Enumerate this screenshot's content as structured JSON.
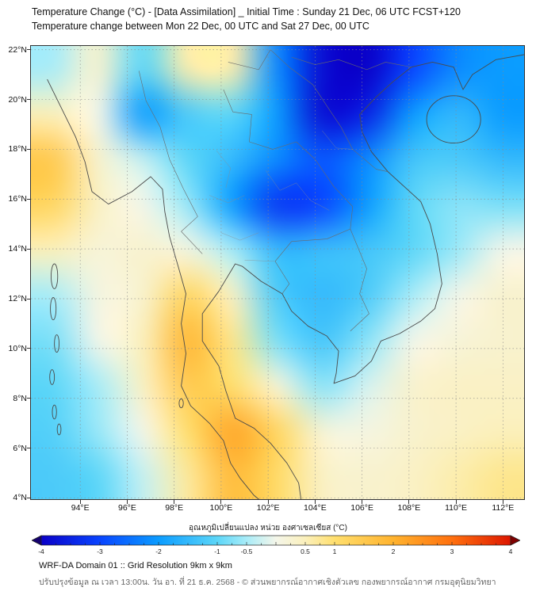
{
  "header": {
    "title_line1": "Temperature Change (°C) - [Data Assimilation] _ Initial Time : Sunday 21 Dec, 06 UTC FCST+120",
    "title_line2": "Temperature change between Mon 22 Dec, 00 UTC and Sat 27 Dec, 00 UTC"
  },
  "map_axes": {
    "extent": {
      "lon_min": 91.9,
      "lon_max": 112.9,
      "lat_min": 3.95,
      "lat_max": 22.15
    },
    "lat_ticks": [
      {
        "value": 22,
        "label": "22°N"
      },
      {
        "value": 20,
        "label": "20°N"
      },
      {
        "value": 18,
        "label": "18°N"
      },
      {
        "value": 16,
        "label": "16°N"
      },
      {
        "value": 14,
        "label": "14°N"
      },
      {
        "value": 12,
        "label": "12°N"
      },
      {
        "value": 10,
        "label": "10°N"
      },
      {
        "value": 8,
        "label": "8°N"
      },
      {
        "value": 6,
        "label": "6°N"
      },
      {
        "value": 4,
        "label": "4°N"
      }
    ],
    "lon_ticks": [
      {
        "value": 94,
        "label": "94°E"
      },
      {
        "value": 96,
        "label": "96°E"
      },
      {
        "value": 98,
        "label": "98°E"
      },
      {
        "value": 100,
        "label": "100°E"
      },
      {
        "value": 102,
        "label": "102°E"
      },
      {
        "value": 104,
        "label": "104°E"
      },
      {
        "value": 106,
        "label": "106°E"
      },
      {
        "value": 108,
        "label": "108°E"
      },
      {
        "value": 110,
        "label": "110°E"
      },
      {
        "value": 112,
        "label": "112°E"
      }
    ]
  },
  "colorbar": {
    "label": "อุณหภูมิเปลี่ยนแปลง หน่วย องศาเซลเซียส (°C)",
    "tick_values": [
      -4,
      -3,
      -2,
      -1,
      -0.5,
      0.5,
      1,
      2,
      3,
      4
    ],
    "range": [
      -4,
      4
    ],
    "stops": [
      {
        "v": -4.5,
        "c": "#14006e"
      },
      {
        "v": -4.0,
        "c": "#0a00c8"
      },
      {
        "v": -3.0,
        "c": "#0944ff"
      },
      {
        "v": -2.0,
        "c": "#0b9cff"
      },
      {
        "v": -1.0,
        "c": "#5cd6f8"
      },
      {
        "v": -0.5,
        "c": "#a8ecf8"
      },
      {
        "v": 0.0,
        "c": "#f4f6ea"
      },
      {
        "v": 0.5,
        "c": "#fbf0bc"
      },
      {
        "v": 1.0,
        "c": "#ffdf6e"
      },
      {
        "v": 2.0,
        "c": "#ffb32e"
      },
      {
        "v": 3.0,
        "c": "#ff700e"
      },
      {
        "v": 4.0,
        "c": "#dd1600"
      },
      {
        "v": 4.5,
        "c": "#7f0000"
      }
    ]
  },
  "footer": {
    "line1": "WRF-DA Domain 01 :: Grid Resolution 9km x 9km",
    "line2": "ปรับปรุงข้อมูล ณ เวลา 13:00น. วัน อา. ที่ 21 ธ.ค. 2568 - © ส่วนพยากรณ์อากาศเชิงตัวเลข กองพยากรณ์อากาศ กรมอุตุนิยมวิทยา"
  },
  "chart_data": {
    "type": "heatmap",
    "title": "Temperature change (°C) between Mon 22 Dec, 00 UTC and Sat 27 Dec, 00 UTC",
    "unit": "°C",
    "value_range": [
      -4,
      4
    ],
    "x_lon": [
      92.9,
      94.8,
      96.7,
      98.6,
      100.5,
      102.4,
      104.3,
      106.2,
      108.1,
      110.0,
      111.9
    ],
    "y_lat": [
      21.2,
      19.4,
      17.6,
      15.8,
      13.9,
      12.1,
      10.3,
      8.5,
      6.6,
      4.9
    ],
    "values": [
      [
        -0.5,
        0.3,
        -1.0,
        0.6,
        0.6,
        -2.2,
        -3.8,
        -4.0,
        -3.0,
        -2.2,
        -2.0
      ],
      [
        0.5,
        0.0,
        -2.0,
        -1.2,
        -1.0,
        -2.0,
        -3.8,
        -3.5,
        -2.0,
        -1.5,
        -2.0
      ],
      [
        1.5,
        0.3,
        -0.3,
        -1.0,
        -1.5,
        -2.2,
        -2.8,
        -2.2,
        -1.3,
        -1.2,
        -1.5
      ],
      [
        1.2,
        0.4,
        0.0,
        -0.6,
        -2.0,
        -3.2,
        -3.0,
        -2.0,
        -1.0,
        -0.7,
        -0.8
      ],
      [
        0.5,
        0.2,
        0.3,
        0.1,
        -0.5,
        -1.5,
        -1.4,
        -1.3,
        -1.0,
        -0.6,
        0.0
      ],
      [
        -0.5,
        0.1,
        0.3,
        1.2,
        0.4,
        -1.2,
        -1.5,
        -1.2,
        -0.5,
        0.0,
        0.3
      ],
      [
        -0.8,
        0.0,
        0.5,
        1.9,
        0.8,
        -0.8,
        -1.3,
        -0.7,
        0.0,
        0.2,
        0.3
      ],
      [
        -1.0,
        -0.5,
        0.4,
        1.5,
        1.0,
        0.2,
        -0.7,
        -0.2,
        0.3,
        0.4,
        0.4
      ],
      [
        -1.1,
        -0.6,
        0.0,
        1.0,
        2.2,
        1.2,
        0.2,
        0.1,
        0.3,
        0.4,
        0.5
      ],
      [
        -1.2,
        -1.0,
        -0.3,
        0.7,
        1.8,
        1.1,
        0.4,
        0.3,
        0.4,
        0.6,
        0.8
      ]
    ]
  }
}
